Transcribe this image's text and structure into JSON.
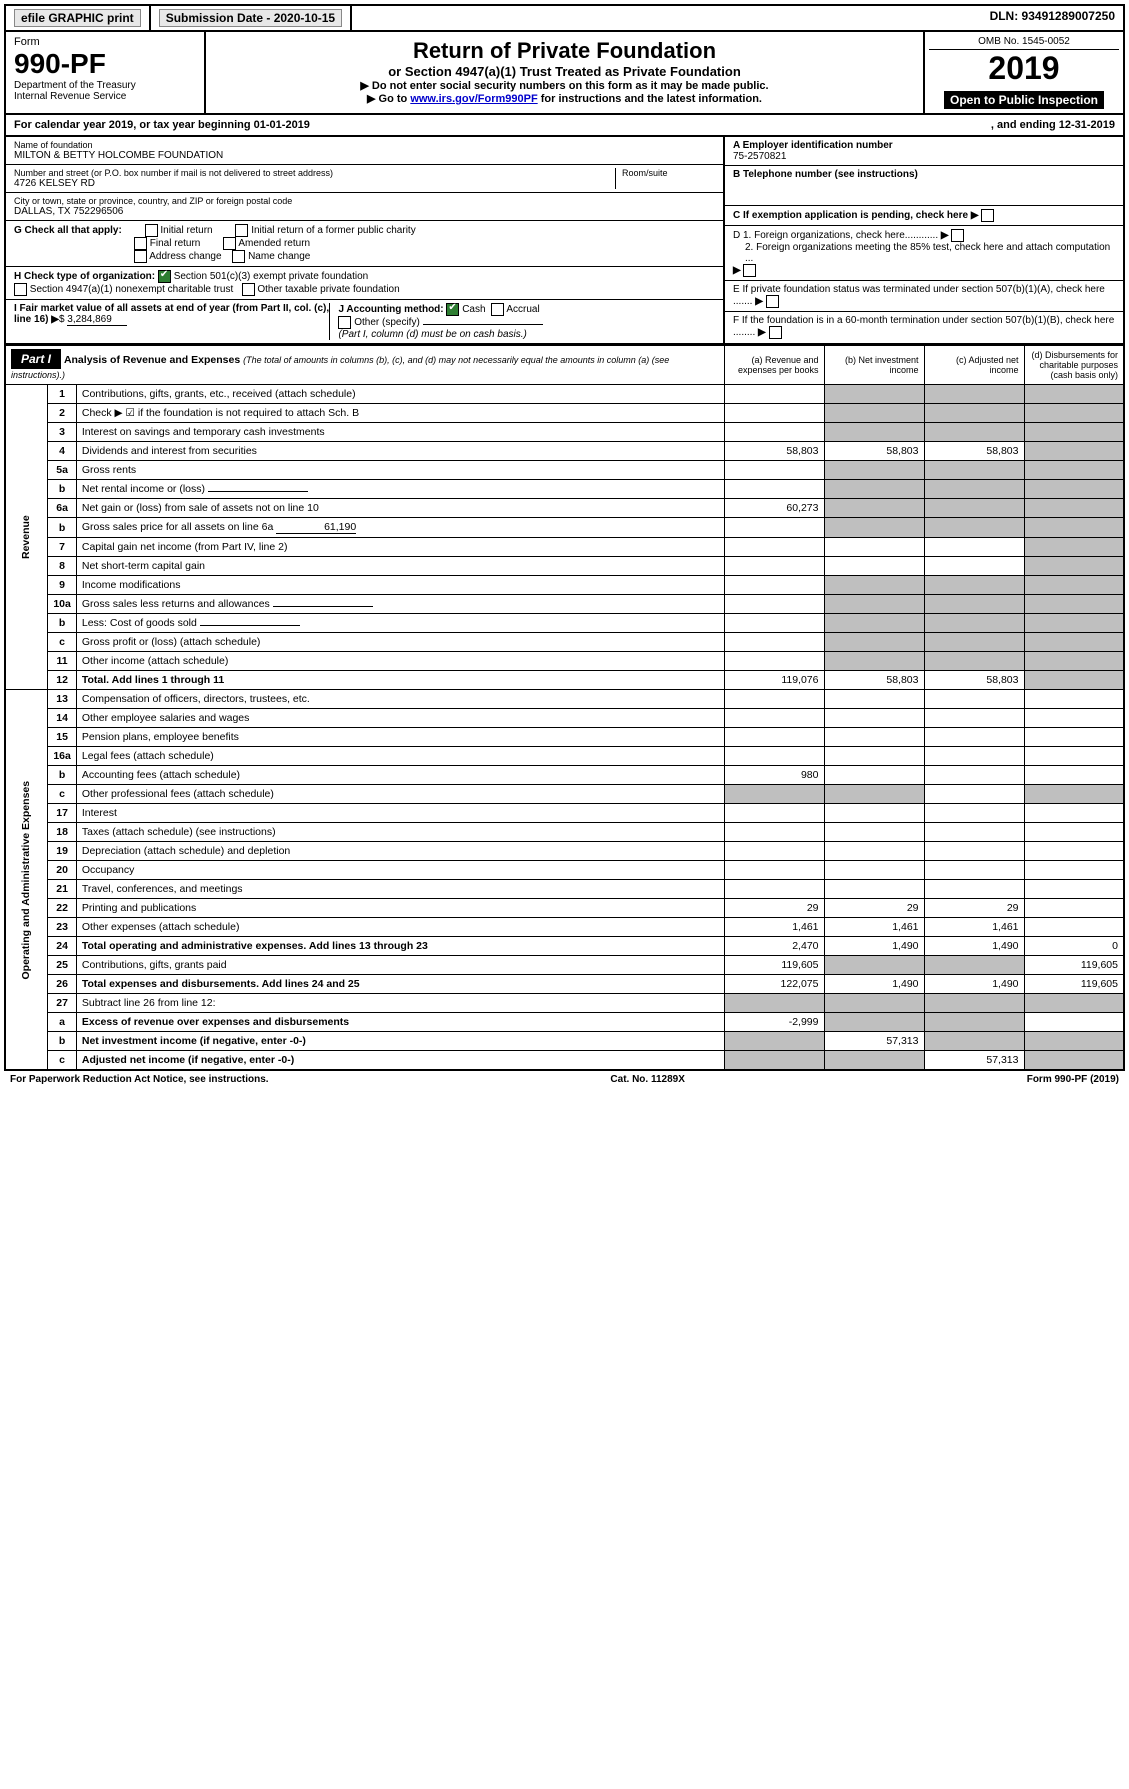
{
  "top": {
    "efile": "efile GRAPHIC print",
    "sub_label": "Submission Date - 2020-10-15",
    "dln": "DLN: 93491289007250"
  },
  "header": {
    "form_label": "Form",
    "form_number": "990-PF",
    "dept1": "Department of the Treasury",
    "dept2": "Internal Revenue Service",
    "title": "Return of Private Foundation",
    "subtitle": "or Section 4947(a)(1) Trust Treated as Private Foundation",
    "note1": "▶ Do not enter social security numbers on this form as it may be made public.",
    "note2a": "▶ Go to ",
    "note2_link": "www.irs.gov/Form990PF",
    "note2b": " for instructions and the latest information.",
    "omb": "OMB No. 1545-0052",
    "year": "2019",
    "open": "Open to Public Inspection"
  },
  "cal": {
    "left": "For calendar year 2019, or tax year beginning 01-01-2019",
    "right": ", and ending 12-31-2019"
  },
  "entity": {
    "name_lbl": "Name of foundation",
    "name": "MILTON & BETTY HOLCOMBE FOUNDATION",
    "addr_lbl": "Number and street (or P.O. box number if mail is not delivered to street address)",
    "addr": "4726 KELSEY RD",
    "room_lbl": "Room/suite",
    "city_lbl": "City or town, state or province, country, and ZIP or foreign postal code",
    "city": "DALLAS, TX  752296506",
    "ein_lbl": "A Employer identification number",
    "ein": "75-2570821",
    "tel_lbl": "B Telephone number (see instructions)",
    "c_lbl": "C If exemption application is pending, check here",
    "d1": "D 1. Foreign organizations, check here............",
    "d2": "2. Foreign organizations meeting the 85% test, check here and attach computation ...",
    "e": "E If private foundation status was terminated under section 507(b)(1)(A), check here .......",
    "f": "F If the foundation is in a 60-month termination under section 507(b)(1)(B), check here ........"
  },
  "g": {
    "lbl": "G Check all that apply:",
    "opts": [
      "Initial return",
      "Final return",
      "Address change",
      "Initial return of a former public charity",
      "Amended return",
      "Name change"
    ]
  },
  "h": {
    "lbl": "H Check type of organization:",
    "o1": "Section 501(c)(3) exempt private foundation",
    "o2": "Section 4947(a)(1) nonexempt charitable trust",
    "o3": "Other taxable private foundation"
  },
  "i": {
    "lbl": "I Fair market value of all assets at end of year (from Part II, col. (c), line 16)",
    "val": "3,284,869"
  },
  "j": {
    "lbl": "J Accounting method:",
    "cash": "Cash",
    "accrual": "Accrual",
    "other": "Other (specify)",
    "note": "(Part I, column (d) must be on cash basis.)"
  },
  "part1": {
    "title": "Analysis of Revenue and Expenses",
    "note": "(The total of amounts in columns (b), (c), and (d) may not necessarily equal the amounts in column (a) (see instructions).)",
    "cols": {
      "a": "(a) Revenue and expenses per books",
      "b": "(b) Net investment income",
      "c": "(c) Adjusted net income",
      "d": "(d) Disbursements for charitable purposes (cash basis only)"
    }
  },
  "revenue_label": "Revenue",
  "expenses_label": "Operating and Administrative Expenses",
  "rows": [
    {
      "n": "1",
      "d": "Contributions, gifts, grants, etc., received (attach schedule)"
    },
    {
      "n": "2",
      "d": "Check ▶ ☑ if the foundation is not required to attach Sch. B",
      "dots": true
    },
    {
      "n": "3",
      "d": "Interest on savings and temporary cash investments"
    },
    {
      "n": "4",
      "d": "Dividends and interest from securities",
      "dots": true,
      "a": "58,803",
      "b": "58,803",
      "c": "58,803"
    },
    {
      "n": "5a",
      "d": "Gross rents",
      "dots": true
    },
    {
      "n": "b",
      "d": "Net rental income or (loss)",
      "inline": true
    },
    {
      "n": "6a",
      "d": "Net gain or (loss) from sale of assets not on line 10",
      "a": "60,273"
    },
    {
      "n": "b",
      "d": "Gross sales price for all assets on line 6a",
      "inline_val": "61,190"
    },
    {
      "n": "7",
      "d": "Capital gain net income (from Part IV, line 2)",
      "dots": true
    },
    {
      "n": "8",
      "d": "Net short-term capital gain",
      "dots": true
    },
    {
      "n": "9",
      "d": "Income modifications",
      "dots": true
    },
    {
      "n": "10a",
      "d": "Gross sales less returns and allowances",
      "inline": true
    },
    {
      "n": "b",
      "d": "Less: Cost of goods sold",
      "dots": true,
      "inline": true
    },
    {
      "n": "c",
      "d": "Gross profit or (loss) (attach schedule)",
      "dots": true
    },
    {
      "n": "11",
      "d": "Other income (attach schedule)",
      "dots": true
    },
    {
      "n": "12",
      "d": "Total. Add lines 1 through 11",
      "dots": true,
      "bold": true,
      "a": "119,076",
      "b": "58,803",
      "c": "58,803"
    },
    {
      "n": "13",
      "d": "Compensation of officers, directors, trustees, etc."
    },
    {
      "n": "14",
      "d": "Other employee salaries and wages",
      "dots": true
    },
    {
      "n": "15",
      "d": "Pension plans, employee benefits",
      "dots": true
    },
    {
      "n": "16a",
      "d": "Legal fees (attach schedule)",
      "dots": true
    },
    {
      "n": "b",
      "d": "Accounting fees (attach schedule)",
      "dots": true,
      "a": "980"
    },
    {
      "n": "c",
      "d": "Other professional fees (attach schedule)",
      "dots": true
    },
    {
      "n": "17",
      "d": "Interest",
      "dots": true
    },
    {
      "n": "18",
      "d": "Taxes (attach schedule) (see instructions)",
      "dots": true
    },
    {
      "n": "19",
      "d": "Depreciation (attach schedule) and depletion",
      "dots": true
    },
    {
      "n": "20",
      "d": "Occupancy",
      "dots": true
    },
    {
      "n": "21",
      "d": "Travel, conferences, and meetings",
      "dots": true
    },
    {
      "n": "22",
      "d": "Printing and publications",
      "dots": true,
      "a": "29",
      "b": "29",
      "c": "29"
    },
    {
      "n": "23",
      "d": "Other expenses (attach schedule)",
      "dots": true,
      "a": "1,461",
      "b": "1,461",
      "c": "1,461"
    },
    {
      "n": "24",
      "d": "Total operating and administrative expenses. Add lines 13 through 23",
      "dots": true,
      "bold": true,
      "a": "2,470",
      "b": "1,490",
      "c": "1,490",
      "dd": "0"
    },
    {
      "n": "25",
      "d": "Contributions, gifts, grants paid",
      "dots": true,
      "a": "119,605",
      "dd": "119,605"
    },
    {
      "n": "26",
      "d": "Total expenses and disbursements. Add lines 24 and 25",
      "bold": true,
      "a": "122,075",
      "b": "1,490",
      "c": "1,490",
      "dd": "119,605"
    },
    {
      "n": "27",
      "d": "Subtract line 26 from line 12:"
    },
    {
      "n": "a",
      "d": "Excess of revenue over expenses and disbursements",
      "bold": true,
      "a": "-2,999"
    },
    {
      "n": "b",
      "d": "Net investment income (if negative, enter -0-)",
      "bold": true,
      "b": "57,313"
    },
    {
      "n": "c",
      "d": "Adjusted net income (if negative, enter -0-)",
      "bold": true,
      "dots": true,
      "c": "57,313"
    }
  ],
  "footer": {
    "left": "For Paperwork Reduction Act Notice, see instructions.",
    "mid": "Cat. No. 11289X",
    "right": "Form 990-PF (2019)"
  }
}
